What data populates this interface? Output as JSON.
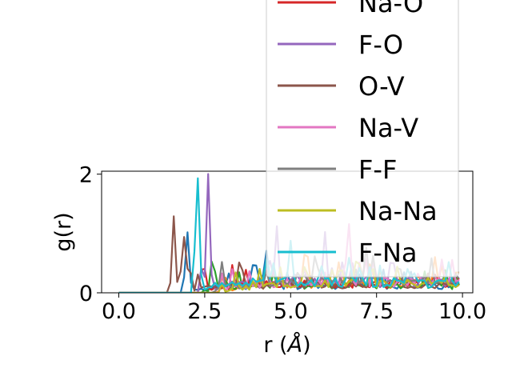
{
  "chart_data": {
    "type": "line",
    "title": "",
    "xlabel": "r (Å)",
    "xlabel_parts": [
      "r (",
      "Å",
      ")"
    ],
    "ylabel": "g(r)",
    "xlim": [
      -0.5,
      10.3
    ],
    "ylim": [
      0,
      2.05
    ],
    "xticks": [
      0.0,
      2.5,
      5.0,
      7.5,
      10.0
    ],
    "xtick_labels": [
      "0.0",
      "2.5",
      "5.0",
      "7.5",
      "10.0"
    ],
    "yticks": [
      0,
      2
    ],
    "ytick_labels": [
      "0",
      "2"
    ],
    "grid": false,
    "legend_placement": "top-right, overflowing above the axes",
    "series": [
      {
        "name": "",
        "color": "#1f77b4",
        "onset": 1.9,
        "first_peak": [
          2.0,
          1.0
        ],
        "peaks": [
          [
            3.95,
            0.7
          ],
          [
            4.3,
            0.6
          ]
        ],
        "tail": 0.12
      },
      {
        "name": "",
        "color": "#ff7f0e",
        "onset": 2.8,
        "first_peak": [
          3.05,
          0.38
        ],
        "peaks": [
          [
            5.4,
            0.55
          ],
          [
            9.2,
            0.4
          ]
        ],
        "tail": 0.15
      },
      {
        "name": "",
        "color": "#2ca02c",
        "onset": 2.5,
        "first_peak": [
          2.75,
          0.5
        ],
        "peaks": [
          [
            3.5,
            0.3
          ]
        ],
        "tail": 0.12
      },
      {
        "name": "Na-O",
        "color": "#d62728",
        "onset": 2.3,
        "first_peak": [
          2.45,
          0.63
        ],
        "peaks": [
          [
            3.7,
            0.28
          ]
        ],
        "tail": 0.15
      },
      {
        "name": "F-O",
        "color": "#9467bd",
        "onset": 2.4,
        "first_peak": [
          2.6,
          1.95
        ],
        "peaks": [
          [
            4.6,
            0.9
          ],
          [
            6.0,
            0.55
          ]
        ],
        "tail": 0.18
      },
      {
        "name": "O-V",
        "color": "#8c564b",
        "onset": 1.5,
        "first_peak": [
          1.6,
          1.27
        ],
        "peaks": [
          [
            1.9,
            0.9
          ],
          [
            3.55,
            0.55
          ]
        ],
        "tail": 0.12
      },
      {
        "name": "Na-V",
        "color": "#e377c2",
        "onset": 3.0,
        "first_peak": [
          3.3,
          0.35
        ],
        "peaks": [
          [
            6.7,
            0.4
          ],
          [
            9.4,
            0.45
          ]
        ],
        "tail": 0.2
      },
      {
        "name": "F-F",
        "color": "#7f7f7f",
        "onset": 2.7,
        "first_peak": [
          3.0,
          0.45
        ],
        "peaks": [
          [
            5.8,
            0.3
          ]
        ],
        "tail": 0.2
      },
      {
        "name": "Na-Na",
        "color": "#bcbd22",
        "onset": 3.0,
        "first_peak": [
          3.4,
          0.3
        ],
        "peaks": [
          [
            6.2,
            0.25
          ]
        ],
        "tail": 0.15
      },
      {
        "name": "F-Na",
        "color": "#17becf",
        "onset": 2.1,
        "first_peak": [
          2.3,
          1.87
        ],
        "peaks": [
          [
            5.0,
            0.55
          ]
        ],
        "tail": 0.18
      }
    ]
  }
}
